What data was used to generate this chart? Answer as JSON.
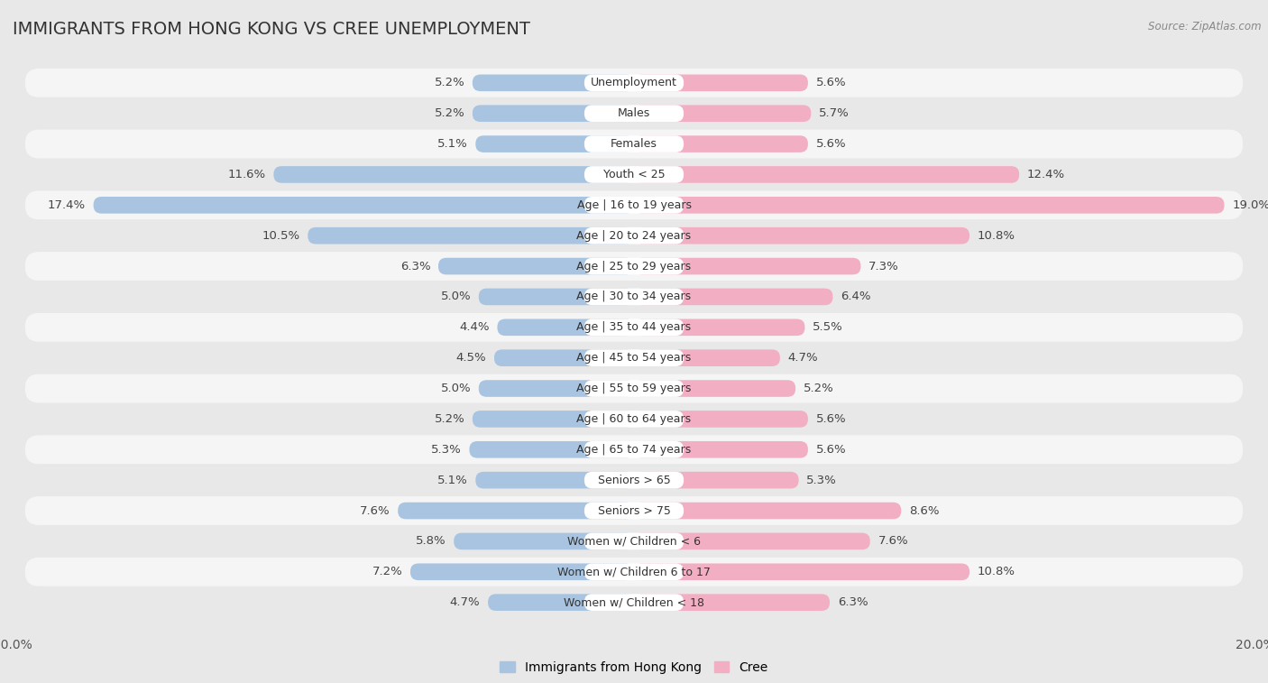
{
  "title": "IMMIGRANTS FROM HONG KONG VS CREE UNEMPLOYMENT",
  "source": "Source: ZipAtlas.com",
  "categories": [
    "Unemployment",
    "Males",
    "Females",
    "Youth < 25",
    "Age | 16 to 19 years",
    "Age | 20 to 24 years",
    "Age | 25 to 29 years",
    "Age | 30 to 34 years",
    "Age | 35 to 44 years",
    "Age | 45 to 54 years",
    "Age | 55 to 59 years",
    "Age | 60 to 64 years",
    "Age | 65 to 74 years",
    "Seniors > 65",
    "Seniors > 75",
    "Women w/ Children < 6",
    "Women w/ Children 6 to 17",
    "Women w/ Children < 18"
  ],
  "left_values": [
    5.2,
    5.2,
    5.1,
    11.6,
    17.4,
    10.5,
    6.3,
    5.0,
    4.4,
    4.5,
    5.0,
    5.2,
    5.3,
    5.1,
    7.6,
    5.8,
    7.2,
    4.7
  ],
  "right_values": [
    5.6,
    5.7,
    5.6,
    12.4,
    19.0,
    10.8,
    7.3,
    6.4,
    5.5,
    4.7,
    5.2,
    5.6,
    5.6,
    5.3,
    8.6,
    7.6,
    10.8,
    6.3
  ],
  "left_color": "#a8c4e0",
  "right_color": "#f2afc4",
  "left_label": "Immigrants from Hong Kong",
  "right_label": "Cree",
  "axis_max": 20.0,
  "background_color": "#e8e8e8",
  "row_color_even": "#f5f5f5",
  "row_color_odd": "#e8e8e8",
  "value_fontsize": 9.5,
  "label_fontsize": 9,
  "title_fontsize": 14
}
